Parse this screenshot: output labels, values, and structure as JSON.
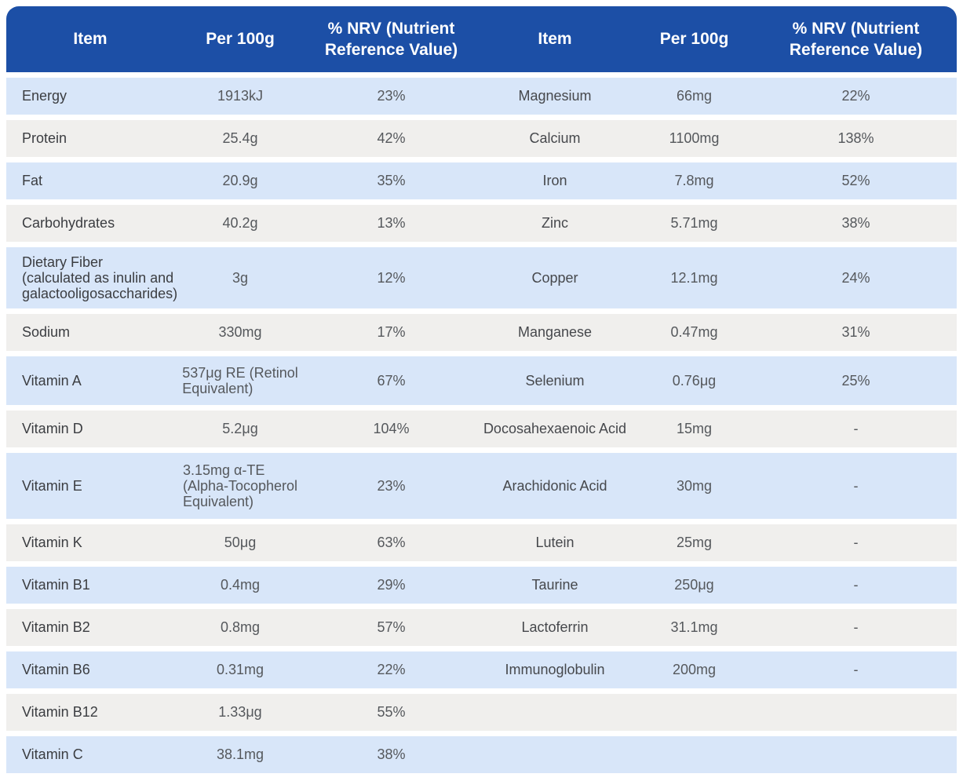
{
  "colors": {
    "header_blue": "#1c4fa6",
    "row_blue": "#d8e6f9",
    "row_gray": "#f0efed"
  },
  "header": [
    "Item",
    "Per 100g",
    "% NRV (Nutrient Reference Value)",
    "Item",
    "Per 100g",
    "% NRV (Nutrient Reference Value)"
  ],
  "rows": [
    {
      "left": {
        "item": "Energy",
        "per100g": "1913kJ",
        "nrv": "23%"
      },
      "right": {
        "item": "Magnesium",
        "per100g": "66mg",
        "nrv": "22%"
      }
    },
    {
      "left": {
        "item": "Protein",
        "per100g": "25.4g",
        "nrv": "42%"
      },
      "right": {
        "item": "Calcium",
        "per100g": "1100mg",
        "nrv": "138%"
      }
    },
    {
      "left": {
        "item": "Fat",
        "per100g": "20.9g",
        "nrv": "35%"
      },
      "right": {
        "item": "Iron",
        "per100g": "7.8mg",
        "nrv": "52%"
      }
    },
    {
      "left": {
        "item": "Carbohydrates",
        "per100g": "40.2g",
        "nrv": "13%"
      },
      "right": {
        "item": "Zinc",
        "per100g": "5.71mg",
        "nrv": "38%"
      }
    },
    {
      "left": {
        "item": "Dietary Fiber\n(calculated as inulin and\ngalactooligosaccharides)",
        "per100g": "3g",
        "nrv": "12%"
      },
      "right": {
        "item": "Copper",
        "per100g": "12.1mg",
        "nrv": "24%"
      }
    },
    {
      "left": {
        "item": "Sodium",
        "per100g": "330mg",
        "nrv": "17%"
      },
      "right": {
        "item": "Manganese",
        "per100g": "0.47mg",
        "nrv": "31%"
      }
    },
    {
      "left": {
        "item": "Vitamin A",
        "per100g": "537μg RE (Retinol\nEquivalent)",
        "nrv": "67%"
      },
      "right": {
        "item": "Selenium",
        "per100g": "0.76μg",
        "nrv": "25%"
      }
    },
    {
      "left": {
        "item": "Vitamin D",
        "per100g": "5.2μg",
        "nrv": "104%"
      },
      "right": {
        "item": "Docosahexaenoic Acid",
        "per100g": "15mg",
        "nrv": "-"
      }
    },
    {
      "left": {
        "item": "Vitamin E",
        "per100g": "3.15mg α-TE\n(Alpha-Tocopherol\nEquivalent)",
        "nrv": "23%"
      },
      "right": {
        "item": "Arachidonic Acid",
        "per100g": "30mg",
        "nrv": "-"
      }
    },
    {
      "left": {
        "item": "Vitamin K",
        "per100g": "50μg",
        "nrv": "63%"
      },
      "right": {
        "item": "Lutein",
        "per100g": "25mg",
        "nrv": "-"
      }
    },
    {
      "left": {
        "item": "Vitamin B1",
        "per100g": "0.4mg",
        "nrv": "29%"
      },
      "right": {
        "item": "Taurine",
        "per100g": "250μg",
        "nrv": "-"
      }
    },
    {
      "left": {
        "item": "Vitamin B2",
        "per100g": "0.8mg",
        "nrv": "57%"
      },
      "right": {
        "item": "Lactoferrin",
        "per100g": "31.1mg",
        "nrv": "-"
      }
    },
    {
      "left": {
        "item": "Vitamin B6",
        "per100g": "0.31mg",
        "nrv": "22%"
      },
      "right": {
        "item": "Immunoglobulin",
        "per100g": "200mg",
        "nrv": "-"
      }
    },
    {
      "left": {
        "item": "Vitamin B12",
        "per100g": "1.33μg",
        "nrv": "55%"
      },
      "right": {
        "item": "",
        "per100g": "",
        "nrv": ""
      }
    },
    {
      "left": {
        "item": "Vitamin C",
        "per100g": "38.1mg",
        "nrv": "38%"
      },
      "right": {
        "item": "",
        "per100g": "",
        "nrv": ""
      }
    }
  ]
}
